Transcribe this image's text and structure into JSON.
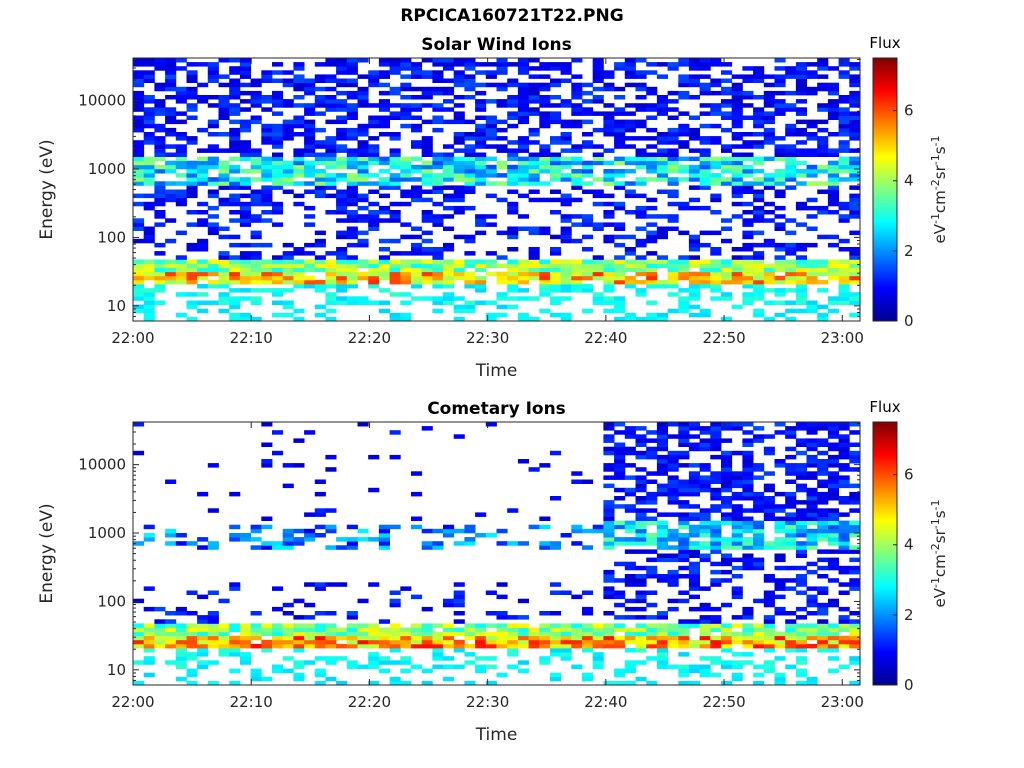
{
  "figure": {
    "title": "RPCICA160721T22.PNG"
  },
  "colorscale": {
    "stops": [
      "#00008f",
      "#0000ff",
      "#0080ff",
      "#00ffff",
      "#80ff80",
      "#ffff00",
      "#ff8000",
      "#ff0000",
      "#800000"
    ],
    "range": [
      0,
      7.5
    ]
  },
  "chart_data": [
    {
      "type": "heatmap",
      "title": "Solar Wind Ions",
      "xlabel": "Time",
      "ylabel": "Energy (eV)",
      "yscale": "log",
      "ylim": [
        6,
        42000
      ],
      "x_ticks": [
        "22:00",
        "22:10",
        "22:20",
        "22:30",
        "22:40",
        "22:50",
        "23:00"
      ],
      "x_tick_minutes": [
        0,
        10,
        20,
        30,
        40,
        50,
        60
      ],
      "xlim_minutes": [
        0,
        61.5
      ],
      "y_ticks": [
        "10",
        "100",
        "1000",
        "10000"
      ],
      "y_tick_values": [
        10,
        100,
        1000,
        10000
      ],
      "colorbar": {
        "title": "Flux",
        "ticks": [
          "0",
          "2",
          "4",
          "6"
        ],
        "tick_values": [
          0,
          2,
          4,
          6
        ],
        "range": [
          0,
          7.5
        ],
        "label_base": "eV",
        "label_exps": [
          "-1",
          "-2",
          "-1",
          "-1"
        ],
        "label_units": [
          "cm",
          "sr",
          "s"
        ]
      },
      "bands": [
        {
          "energy_range": [
            6,
            10
          ],
          "flux_range": [
            2.5,
            3.0
          ],
          "fill": 0.35,
          "start_min": 0,
          "end_min": 61.5
        },
        {
          "energy_range": [
            10,
            22
          ],
          "flux_range": [
            2.5,
            3.2
          ],
          "fill": 0.45,
          "start_min": 0,
          "end_min": 61.5
        },
        {
          "energy_range": [
            22,
            32
          ],
          "flux_range": [
            3.8,
            6.3
          ],
          "fill": 0.9,
          "start_min": 0,
          "end_min": 61.5
        },
        {
          "energy_range": [
            32,
            48
          ],
          "flux_range": [
            2.8,
            4.8
          ],
          "fill": 0.95,
          "start_min": 0,
          "end_min": 61.5
        },
        {
          "energy_range": [
            48,
            200
          ],
          "flux_range": [
            0.5,
            1.5
          ],
          "fill": 0.35,
          "start_min": 0,
          "end_min": 61.5
        },
        {
          "energy_range": [
            200,
            600
          ],
          "flux_range": [
            0.5,
            1.5
          ],
          "fill": 0.45,
          "start_min": 0,
          "end_min": 61.5
        },
        {
          "energy_range": [
            600,
            1600
          ],
          "flux_range": [
            1.5,
            4.0
          ],
          "fill": 0.8,
          "start_min": 0,
          "end_min": 61.5
        },
        {
          "energy_range": [
            1600,
            42000
          ],
          "flux_range": [
            0.5,
            1.5
          ],
          "fill": 0.55,
          "start_min": 0,
          "end_min": 61.5
        }
      ]
    },
    {
      "type": "heatmap",
      "title": "Cometary Ions",
      "xlabel": "Time",
      "ylabel": "Energy (eV)",
      "yscale": "log",
      "ylim": [
        6,
        42000
      ],
      "x_ticks": [
        "22:00",
        "22:10",
        "22:20",
        "22:30",
        "22:40",
        "22:50",
        "23:00"
      ],
      "x_tick_minutes": [
        0,
        10,
        20,
        30,
        40,
        50,
        60
      ],
      "xlim_minutes": [
        0,
        61.5
      ],
      "y_ticks": [
        "10",
        "100",
        "1000",
        "10000"
      ],
      "y_tick_values": [
        10,
        100,
        1000,
        10000
      ],
      "colorbar": {
        "title": "Flux",
        "ticks": [
          "0",
          "2",
          "4",
          "6"
        ],
        "tick_values": [
          0,
          2,
          4,
          6
        ],
        "range": [
          0,
          7.5
        ],
        "label_base": "eV",
        "label_exps": [
          "-1",
          "-2",
          "-1",
          "-1"
        ],
        "label_units": [
          "cm",
          "sr",
          "s"
        ]
      },
      "bands": [
        {
          "energy_range": [
            6,
            10
          ],
          "flux_range": [
            2.5,
            3.0
          ],
          "fill": 0.25,
          "start_min": 0,
          "end_min": 61.5
        },
        {
          "energy_range": [
            10,
            22
          ],
          "flux_range": [
            2.5,
            3.2
          ],
          "fill": 0.4,
          "start_min": 0,
          "end_min": 61.5
        },
        {
          "energy_range": [
            22,
            32
          ],
          "flux_range": [
            4.0,
            6.5
          ],
          "fill": 0.95,
          "start_min": 0,
          "end_min": 61.5
        },
        {
          "energy_range": [
            32,
            48
          ],
          "flux_range": [
            2.8,
            4.8
          ],
          "fill": 0.95,
          "start_min": 0,
          "end_min": 61.5
        },
        {
          "energy_range": [
            48,
            200
          ],
          "flux_range": [
            0.5,
            1.5
          ],
          "fill": 0.15,
          "start_min": 0,
          "end_min": 39.5
        },
        {
          "energy_range": [
            600,
            1300
          ],
          "flux_range": [
            0.8,
            2.8
          ],
          "fill": 0.35,
          "start_min": 0,
          "end_min": 39.5
        },
        {
          "energy_range": [
            1300,
            42000
          ],
          "flux_range": [
            0.5,
            1.2
          ],
          "fill": 0.03,
          "start_min": 0,
          "end_min": 39.5
        },
        {
          "energy_range": [
            48,
            200
          ],
          "flux_range": [
            0.5,
            1.5
          ],
          "fill": 0.4,
          "start_min": 39.5,
          "end_min": 61.5
        },
        {
          "energy_range": [
            200,
            600
          ],
          "flux_range": [
            0.5,
            1.5
          ],
          "fill": 0.5,
          "start_min": 39.5,
          "end_min": 61.5
        },
        {
          "energy_range": [
            600,
            1600
          ],
          "flux_range": [
            1.5,
            3.6
          ],
          "fill": 0.8,
          "start_min": 39.5,
          "end_min": 61.5
        },
        {
          "energy_range": [
            1600,
            42000
          ],
          "flux_range": [
            0.5,
            1.5
          ],
          "fill": 0.6,
          "start_min": 39.5,
          "end_min": 61.5
        }
      ]
    }
  ]
}
